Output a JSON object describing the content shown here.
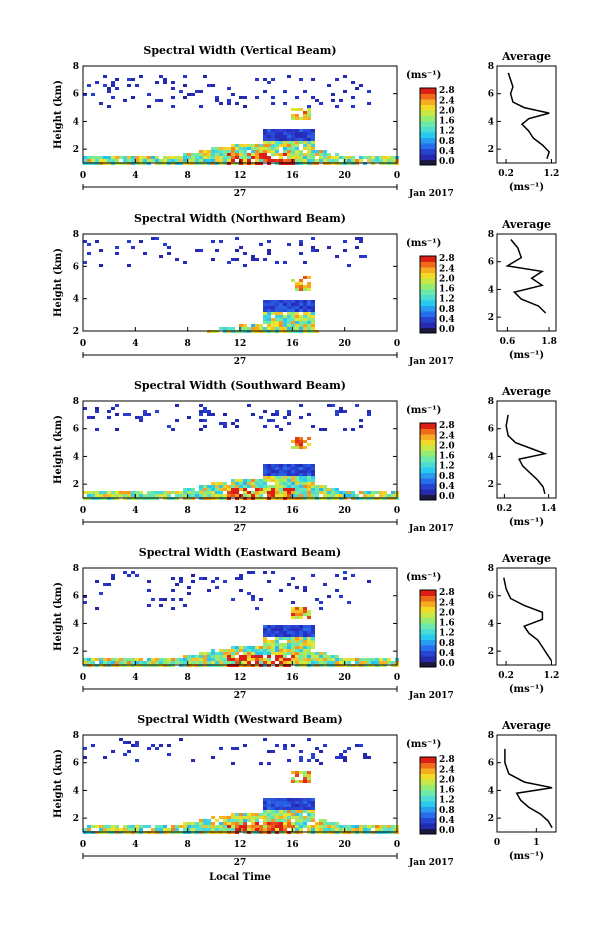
{
  "figure": {
    "xlabel": "Local Time",
    "avg_title": "Average",
    "colorbar_unit": "(ms⁻¹)",
    "avg_xunit": "(ms⁻¹)",
    "ylabel": "Height (km)",
    "date_day": "27",
    "date_label": "Jan 2017"
  },
  "chart_data": [
    {
      "type": "heatmap",
      "title": "Spectral Width (Vertical Beam)",
      "xlabel": "",
      "ylabel": "Height (km)",
      "xlim": [
        0,
        24
      ],
      "xticks": [
        "0",
        "4",
        "8",
        "12",
        "16",
        "20",
        "0"
      ],
      "ylim": [
        1,
        8
      ],
      "yticks": [
        "2",
        "4",
        "6",
        "8"
      ],
      "colorbar": {
        "ticks": [
          "0.0",
          "0.4",
          "0.8",
          "1.2",
          "1.6",
          "2.0",
          "2.4",
          "2.8"
        ],
        "range": [
          0,
          2.8
        ]
      },
      "features": {
        "boundary_layer_top_km": 3.6,
        "high_cloud_km": [
          5,
          7.5
        ],
        "max_feature": {
          "time_h": 16.5,
          "height_km": 4.7
        }
      },
      "average": {
        "xticks": [
          "0.2",
          "1.2"
        ],
        "xlim": [
          0,
          1.3
        ],
        "profile": [
          [
            1.1,
            1.3
          ],
          [
            1.15,
            1.8
          ],
          [
            1.0,
            2.3
          ],
          [
            0.8,
            2.8
          ],
          [
            0.7,
            3.3
          ],
          [
            0.55,
            3.8
          ],
          [
            0.7,
            4.2
          ],
          [
            1.15,
            4.6
          ],
          [
            0.6,
            5.0
          ],
          [
            0.35,
            5.4
          ],
          [
            0.3,
            6.0
          ],
          [
            0.35,
            6.5
          ],
          [
            0.3,
            7.0
          ],
          [
            0.25,
            7.5
          ]
        ]
      }
    },
    {
      "type": "heatmap",
      "title": "Spectral Width (Northward Beam)",
      "xlabel": "",
      "ylabel": "Height (km)",
      "xlim": [
        0,
        24
      ],
      "xticks": [
        "0",
        "4",
        "8",
        "12",
        "16",
        "20",
        "0"
      ],
      "ylim": [
        2,
        8
      ],
      "yticks": [
        "2",
        "4",
        "6",
        "8"
      ],
      "colorbar": {
        "ticks": [
          "0.0",
          "0.4",
          "0.8",
          "1.2",
          "1.6",
          "2.0",
          "2.4",
          "2.8"
        ],
        "range": [
          0,
          2.8
        ]
      },
      "features": {
        "boundary_layer_top_km": 4.0,
        "high_cloud_km": [
          6,
          8
        ],
        "max_feature": {
          "time_h": 16.5,
          "height_km": 5.0
        }
      },
      "average": {
        "xticks": [
          "0.6",
          "1.8"
        ],
        "xlim": [
          0.3,
          2.0
        ],
        "profile": [
          [
            1.7,
            2.3
          ],
          [
            1.5,
            2.8
          ],
          [
            1.0,
            3.3
          ],
          [
            0.8,
            3.8
          ],
          [
            1.6,
            4.3
          ],
          [
            1.3,
            4.8
          ],
          [
            1.6,
            5.3
          ],
          [
            0.6,
            5.7
          ],
          [
            1.0,
            6.3
          ],
          [
            0.9,
            7.0
          ],
          [
            0.7,
            7.6
          ]
        ]
      }
    },
    {
      "type": "heatmap",
      "title": "Spectral Width (Southward Beam)",
      "xlabel": "",
      "ylabel": "Height (km)",
      "xlim": [
        0,
        24
      ],
      "xticks": [
        "0",
        "4",
        "8",
        "12",
        "16",
        "20",
        "0"
      ],
      "ylim": [
        1,
        8
      ],
      "yticks": [
        "2",
        "4",
        "6",
        "8"
      ],
      "colorbar": {
        "ticks": [
          "0.0",
          "0.4",
          "0.8",
          "1.2",
          "1.6",
          "2.0",
          "2.4",
          "2.8"
        ],
        "range": [
          0,
          2.8
        ]
      },
      "features": {
        "boundary_layer_top_km": 3.5,
        "high_cloud_km": [
          6,
          8
        ],
        "max_feature": {
          "time_h": 16.5,
          "height_km": 5.0
        }
      },
      "average": {
        "xticks": [
          "0.2",
          "1.4"
        ],
        "xlim": [
          0,
          1.6
        ],
        "profile": [
          [
            1.3,
            1.3
          ],
          [
            1.25,
            1.8
          ],
          [
            1.1,
            2.3
          ],
          [
            0.9,
            2.8
          ],
          [
            0.7,
            3.3
          ],
          [
            0.6,
            3.8
          ],
          [
            1.3,
            4.2
          ],
          [
            1.0,
            4.5
          ],
          [
            0.5,
            5.0
          ],
          [
            0.3,
            5.5
          ],
          [
            0.25,
            6.2
          ],
          [
            0.3,
            7.0
          ]
        ]
      }
    },
    {
      "type": "heatmap",
      "title": "Spectral Width (Eastward Beam)",
      "xlabel": "",
      "ylabel": "Height (km)",
      "xlim": [
        0,
        24
      ],
      "xticks": [
        "0",
        "4",
        "8",
        "12",
        "16",
        "20",
        "0"
      ],
      "ylim": [
        1,
        8
      ],
      "yticks": [
        "2",
        "4",
        "6",
        "8"
      ],
      "colorbar": {
        "ticks": [
          "0.0",
          "0.4",
          "0.8",
          "1.2",
          "1.6",
          "2.0",
          "2.4",
          "2.8"
        ],
        "range": [
          0,
          2.8
        ]
      },
      "features": {
        "boundary_layer_top_km": 3.9,
        "high_cloud_km": [
          5,
          8
        ],
        "max_feature": {
          "time_h": 16.5,
          "height_km": 4.8
        }
      },
      "average": {
        "xticks": [
          "0.2",
          "1.2"
        ],
        "xlim": [
          0,
          1.3
        ],
        "profile": [
          [
            1.2,
            1.3
          ],
          [
            1.1,
            1.8
          ],
          [
            1.0,
            2.3
          ],
          [
            0.9,
            2.8
          ],
          [
            0.7,
            3.3
          ],
          [
            0.6,
            3.8
          ],
          [
            1.0,
            4.3
          ],
          [
            1.0,
            4.8
          ],
          [
            0.6,
            5.3
          ],
          [
            0.3,
            5.8
          ],
          [
            0.2,
            6.5
          ],
          [
            0.15,
            7.3
          ]
        ]
      }
    },
    {
      "type": "heatmap",
      "title": "Spectral Width (Westward Beam)",
      "xlabel": "Local Time",
      "ylabel": "Height (km)",
      "xlim": [
        0,
        24
      ],
      "xticks": [
        "0",
        "4",
        "8",
        "12",
        "16",
        "20",
        "0"
      ],
      "ylim": [
        1,
        8
      ],
      "yticks": [
        "2",
        "4",
        "6",
        "8"
      ],
      "colorbar": {
        "ticks": [
          "0.0",
          "0.4",
          "0.8",
          "1.2",
          "1.6",
          "2.0",
          "2.4",
          "2.8"
        ],
        "range": [
          0,
          2.8
        ]
      },
      "features": {
        "boundary_layer_top_km": 3.6,
        "high_cloud_km": [
          6,
          8
        ],
        "max_feature": {
          "time_h": 16.5,
          "height_km": 5.0
        }
      },
      "average": {
        "xticks": [
          "0",
          "1"
        ],
        "xlim": [
          0,
          1.5
        ],
        "profile": [
          [
            1.4,
            1.3
          ],
          [
            1.3,
            1.8
          ],
          [
            1.1,
            2.3
          ],
          [
            0.8,
            2.8
          ],
          [
            0.6,
            3.3
          ],
          [
            0.5,
            3.8
          ],
          [
            1.4,
            4.2
          ],
          [
            0.7,
            4.6
          ],
          [
            0.3,
            5.2
          ],
          [
            0.2,
            6.0
          ],
          [
            0.2,
            7.0
          ]
        ]
      }
    }
  ]
}
